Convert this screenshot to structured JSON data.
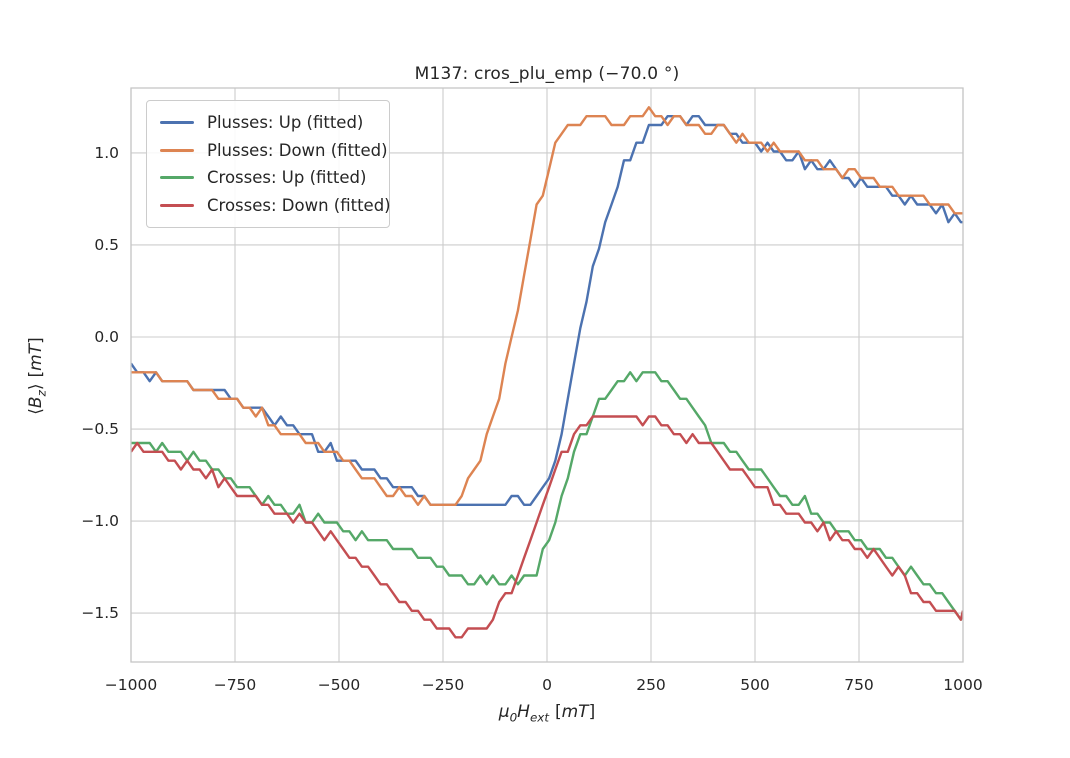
{
  "figure": {
    "background": "#ffffff",
    "text_color": "#262626",
    "grid_color": "#cccccc",
    "spine_color": "#c6c6c6"
  },
  "chart_data": {
    "type": "line",
    "title": "M137: cros_plu_emp (−70.0 °)",
    "xlabel": {
      "mu": "μ",
      "mu_sub": "0",
      "var": "H",
      "var_sub": "ext",
      "bracket_open": "[",
      "unit": "mT",
      "bracket_close": "]"
    },
    "ylabel": {
      "open": "⟨",
      "var": "B",
      "sub": "z",
      "close": "⟩",
      "bracket_open": "[",
      "unit": "mT",
      "bracket_close": "]"
    },
    "xlim": [
      -1000,
      1000
    ],
    "ylim": [
      -1.766,
      1.353
    ],
    "grid": true,
    "legend_position": "upper-left",
    "xticks": {
      "values": [
        -1000,
        -750,
        -500,
        -250,
        0,
        250,
        500,
        750,
        1000
      ],
      "labels": [
        "−1000",
        "−750",
        "−500",
        "−250",
        "0",
        "250",
        "500",
        "750",
        "1000"
      ]
    },
    "yticks": {
      "values": [
        1.0,
        0.5,
        0.0,
        -0.5,
        -1.0,
        -1.5
      ],
      "labels": [
        "1.0",
        "0.5",
        "0.0",
        "−0.5",
        "−1.0",
        "−1.5"
      ]
    },
    "noise": {
      "sample_step_mT": 15,
      "amplitude_mT": 0.03,
      "quantize_mT": 0.048
    },
    "series": [
      {
        "name": "Plusses: Up (fitted)",
        "color": "#4C72B0",
        "seed": 3,
        "points": [
          [
            -1000,
            -0.17
          ],
          [
            -950,
            -0.2
          ],
          [
            -900,
            -0.23
          ],
          [
            -850,
            -0.26
          ],
          [
            -800,
            -0.29
          ],
          [
            -750,
            -0.33
          ],
          [
            -700,
            -0.39
          ],
          [
            -650,
            -0.45
          ],
          [
            -600,
            -0.52
          ],
          [
            -550,
            -0.58
          ],
          [
            -500,
            -0.63
          ],
          [
            -450,
            -0.7
          ],
          [
            -400,
            -0.77
          ],
          [
            -350,
            -0.83
          ],
          [
            -300,
            -0.88
          ],
          [
            -250,
            -0.91
          ],
          [
            -200,
            -0.93
          ],
          [
            -150,
            -0.93
          ],
          [
            -100,
            -0.91
          ],
          [
            -50,
            -0.89
          ],
          [
            -10,
            -0.82
          ],
          [
            10,
            -0.74
          ],
          [
            30,
            -0.58
          ],
          [
            50,
            -0.35
          ],
          [
            70,
            -0.1
          ],
          [
            90,
            0.15
          ],
          [
            110,
            0.38
          ],
          [
            135,
            0.58
          ],
          [
            160,
            0.76
          ],
          [
            185,
            0.92
          ],
          [
            210,
            1.04
          ],
          [
            240,
            1.11
          ],
          [
            270,
            1.15
          ],
          [
            300,
            1.18
          ],
          [
            330,
            1.14
          ],
          [
            360,
            1.16
          ],
          [
            400,
            1.15
          ],
          [
            450,
            1.11
          ],
          [
            500,
            1.04
          ],
          [
            550,
            1.01
          ],
          [
            600,
            0.98
          ],
          [
            650,
            0.93
          ],
          [
            700,
            0.9
          ],
          [
            750,
            0.85
          ],
          [
            800,
            0.8
          ],
          [
            850,
            0.76
          ],
          [
            900,
            0.72
          ],
          [
            950,
            0.67
          ],
          [
            1000,
            0.64
          ]
        ]
      },
      {
        "name": "Plusses: Down (fitted)",
        "color": "#DD8452",
        "seed": 7,
        "points": [
          [
            -1000,
            -0.18
          ],
          [
            -950,
            -0.21
          ],
          [
            -900,
            -0.24
          ],
          [
            -850,
            -0.27
          ],
          [
            -800,
            -0.31
          ],
          [
            -750,
            -0.35
          ],
          [
            -700,
            -0.41
          ],
          [
            -650,
            -0.47
          ],
          [
            -600,
            -0.54
          ],
          [
            -550,
            -0.6
          ],
          [
            -500,
            -0.66
          ],
          [
            -450,
            -0.73
          ],
          [
            -400,
            -0.8
          ],
          [
            -350,
            -0.86
          ],
          [
            -300,
            -0.9
          ],
          [
            -260,
            -0.91
          ],
          [
            -230,
            -0.89
          ],
          [
            -200,
            -0.83
          ],
          [
            -175,
            -0.72
          ],
          [
            -150,
            -0.57
          ],
          [
            -125,
            -0.38
          ],
          [
            -100,
            -0.16
          ],
          [
            -75,
            0.1
          ],
          [
            -50,
            0.4
          ],
          [
            -25,
            0.68
          ],
          [
            0,
            0.9
          ],
          [
            20,
            1.03
          ],
          [
            45,
            1.1
          ],
          [
            75,
            1.13
          ],
          [
            105,
            1.17
          ],
          [
            135,
            1.2
          ],
          [
            165,
            1.17
          ],
          [
            200,
            1.19
          ],
          [
            240,
            1.2
          ],
          [
            280,
            1.17
          ],
          [
            320,
            1.17
          ],
          [
            360,
            1.16
          ],
          [
            400,
            1.14
          ],
          [
            450,
            1.1
          ],
          [
            500,
            1.05
          ],
          [
            550,
            1.02
          ],
          [
            600,
            0.98
          ],
          [
            650,
            0.94
          ],
          [
            700,
            0.91
          ],
          [
            750,
            0.86
          ],
          [
            800,
            0.81
          ],
          [
            850,
            0.77
          ],
          [
            900,
            0.73
          ],
          [
            950,
            0.7
          ],
          [
            1000,
            0.69
          ]
        ]
      },
      {
        "name": "Crosses: Up (fitted)",
        "color": "#55A868",
        "seed": 5,
        "points": [
          [
            -1000,
            -0.57
          ],
          [
            -950,
            -0.59
          ],
          [
            -900,
            -0.62
          ],
          [
            -850,
            -0.66
          ],
          [
            -800,
            -0.72
          ],
          [
            -750,
            -0.79
          ],
          [
            -700,
            -0.85
          ],
          [
            -650,
            -0.9
          ],
          [
            -600,
            -0.95
          ],
          [
            -550,
            -1.0
          ],
          [
            -500,
            -1.04
          ],
          [
            -450,
            -1.08
          ],
          [
            -400,
            -1.12
          ],
          [
            -350,
            -1.15
          ],
          [
            -300,
            -1.19
          ],
          [
            -250,
            -1.26
          ],
          [
            -210,
            -1.31
          ],
          [
            -170,
            -1.33
          ],
          [
            -130,
            -1.33
          ],
          [
            -90,
            -1.33
          ],
          [
            -50,
            -1.31
          ],
          [
            -20,
            -1.24
          ],
          [
            0,
            -1.13
          ],
          [
            20,
            -0.98
          ],
          [
            40,
            -0.83
          ],
          [
            60,
            -0.68
          ],
          [
            80,
            -0.56
          ],
          [
            100,
            -0.47
          ],
          [
            130,
            -0.36
          ],
          [
            160,
            -0.28
          ],
          [
            190,
            -0.23
          ],
          [
            220,
            -0.19
          ],
          [
            250,
            -0.18
          ],
          [
            280,
            -0.21
          ],
          [
            310,
            -0.28
          ],
          [
            340,
            -0.36
          ],
          [
            370,
            -0.47
          ],
          [
            400,
            -0.55
          ],
          [
            430,
            -0.6
          ],
          [
            460,
            -0.67
          ],
          [
            500,
            -0.74
          ],
          [
            550,
            -0.82
          ],
          [
            600,
            -0.88
          ],
          [
            650,
            -0.96
          ],
          [
            700,
            -1.04
          ],
          [
            750,
            -1.09
          ],
          [
            800,
            -1.17
          ],
          [
            850,
            -1.25
          ],
          [
            900,
            -1.32
          ],
          [
            950,
            -1.41
          ],
          [
            1000,
            -1.5
          ]
        ]
      },
      {
        "name": "Crosses: Down (fitted)",
        "color": "#C44E52",
        "seed": 9,
        "points": [
          [
            -1000,
            -0.6
          ],
          [
            -950,
            -0.64
          ],
          [
            -900,
            -0.67
          ],
          [
            -850,
            -0.71
          ],
          [
            -800,
            -0.77
          ],
          [
            -750,
            -0.84
          ],
          [
            -700,
            -0.9
          ],
          [
            -650,
            -0.94
          ],
          [
            -600,
            -0.98
          ],
          [
            -550,
            -1.04
          ],
          [
            -500,
            -1.11
          ],
          [
            -460,
            -1.18
          ],
          [
            -420,
            -1.28
          ],
          [
            -380,
            -1.38
          ],
          [
            -340,
            -1.46
          ],
          [
            -300,
            -1.53
          ],
          [
            -260,
            -1.58
          ],
          [
            -220,
            -1.62
          ],
          [
            -180,
            -1.62
          ],
          [
            -150,
            -1.58
          ],
          [
            -120,
            -1.5
          ],
          [
            -90,
            -1.4
          ],
          [
            -60,
            -1.23
          ],
          [
            -30,
            -1.03
          ],
          [
            0,
            -0.86
          ],
          [
            30,
            -0.68
          ],
          [
            60,
            -0.56
          ],
          [
            90,
            -0.47
          ],
          [
            120,
            -0.44
          ],
          [
            150,
            -0.42
          ],
          [
            180,
            -0.44
          ],
          [
            210,
            -0.43
          ],
          [
            240,
            -0.44
          ],
          [
            270,
            -0.45
          ],
          [
            300,
            -0.49
          ],
          [
            340,
            -0.54
          ],
          [
            380,
            -0.59
          ],
          [
            420,
            -0.65
          ],
          [
            460,
            -0.72
          ],
          [
            500,
            -0.8
          ],
          [
            550,
            -0.88
          ],
          [
            600,
            -0.95
          ],
          [
            650,
            -1.03
          ],
          [
            700,
            -1.1
          ],
          [
            750,
            -1.16
          ],
          [
            800,
            -1.22
          ],
          [
            850,
            -1.3
          ],
          [
            900,
            -1.41
          ],
          [
            940,
            -1.5
          ],
          [
            1000,
            -1.52
          ]
        ]
      }
    ]
  }
}
